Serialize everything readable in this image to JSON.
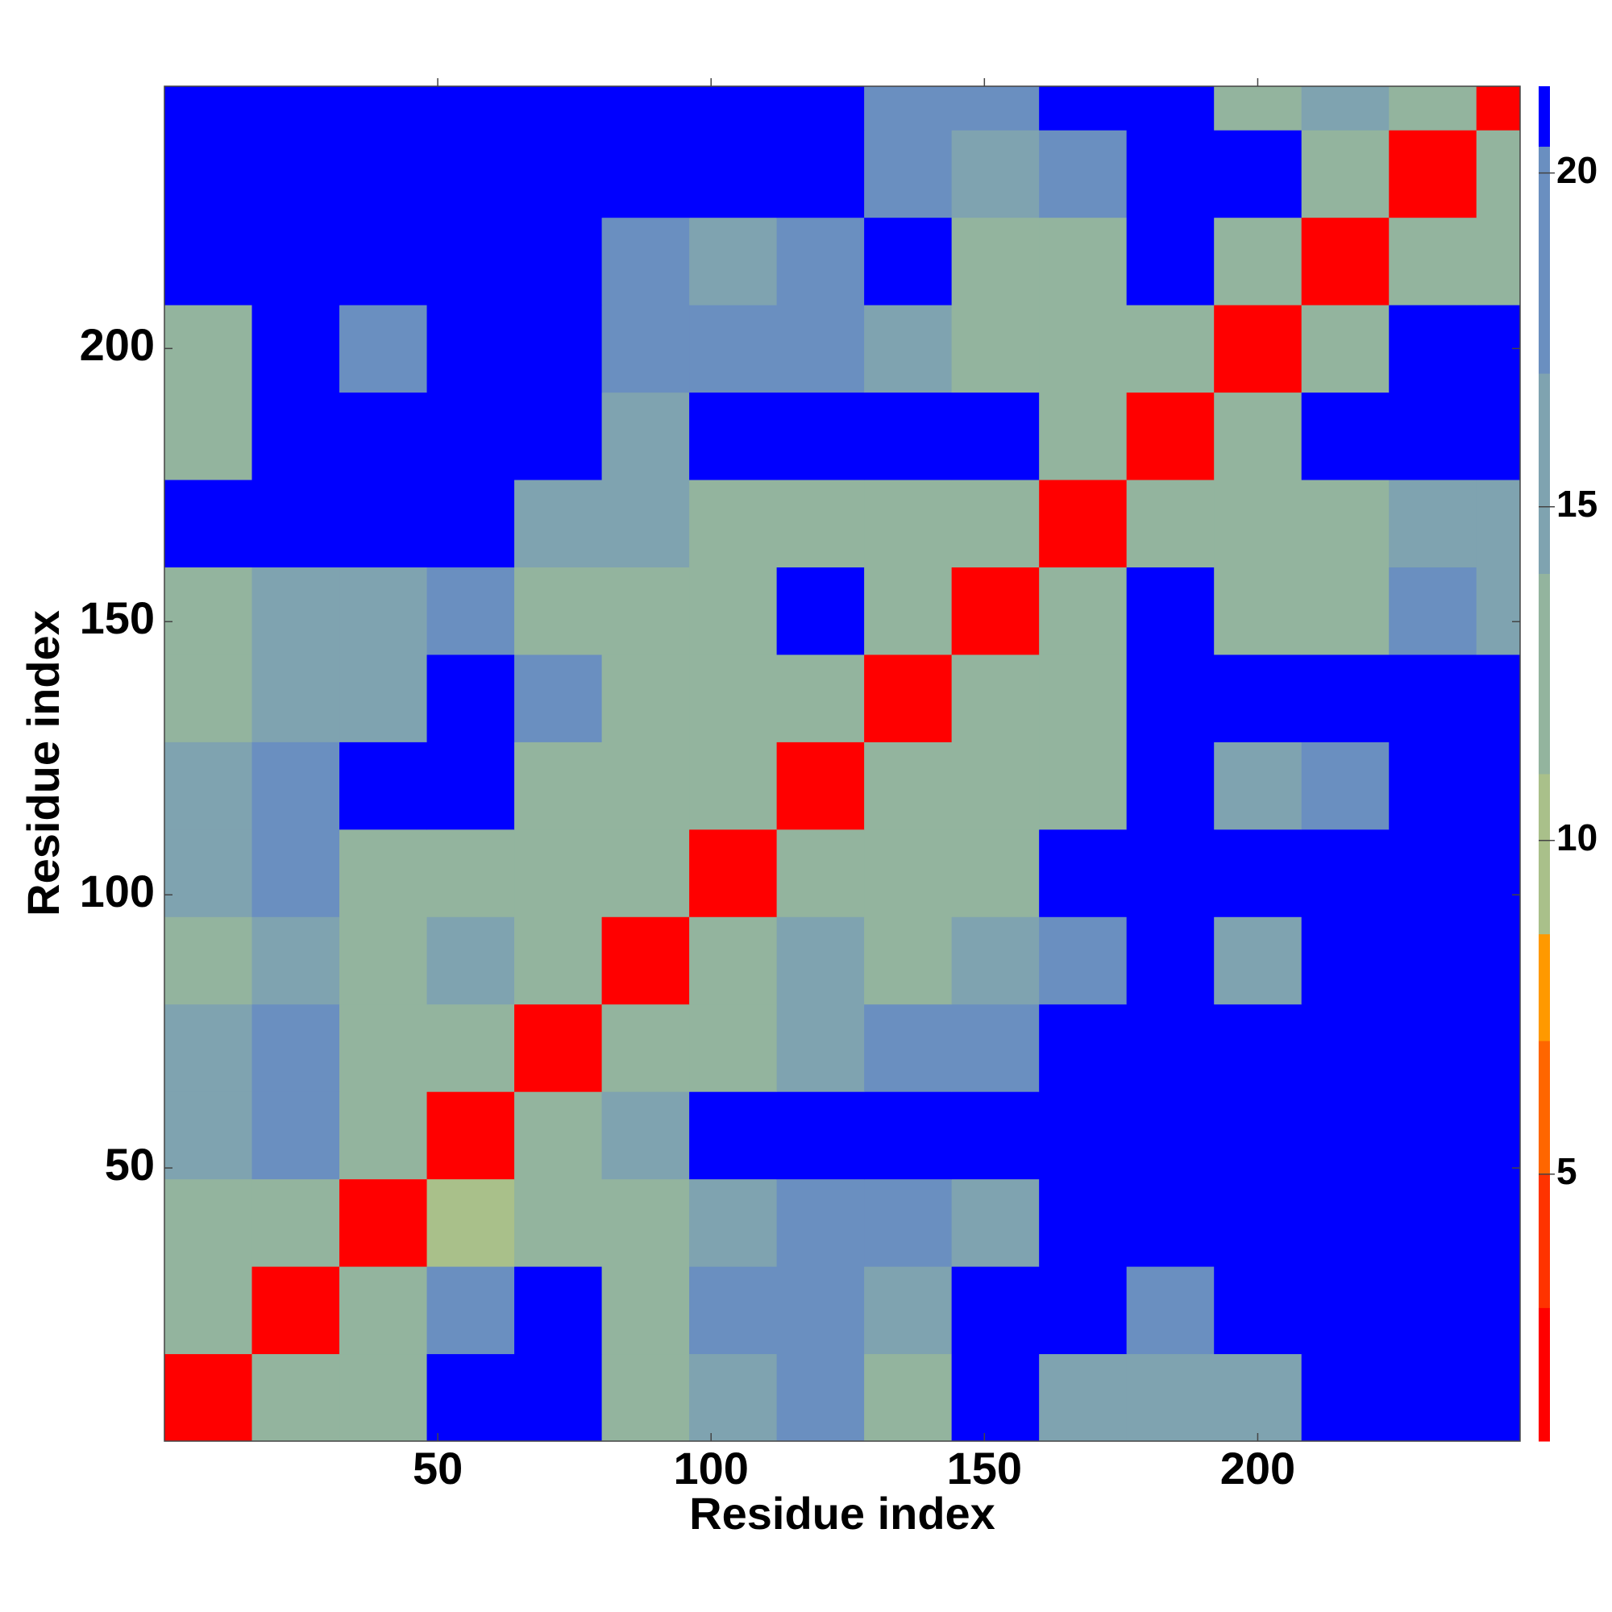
{
  "chart_data": {
    "type": "heatmap",
    "xlabel": "Residue index",
    "ylabel": "Residue index",
    "xbins": [
      0,
      16,
      32,
      48,
      64,
      80,
      96,
      112,
      128,
      144,
      160,
      176,
      192,
      208,
      224,
      240,
      248
    ],
    "ybins": [
      0,
      16,
      32,
      48,
      64,
      80,
      96,
      112,
      128,
      144,
      160,
      176,
      192,
      208,
      224,
      240,
      248
    ],
    "z": [
      [
        2,
        13,
        14,
        21,
        21,
        14,
        17,
        18,
        14,
        21,
        17,
        16,
        15,
        21,
        21,
        21
      ],
      [
        13,
        2,
        12,
        18,
        21,
        14,
        18,
        18,
        15,
        21,
        21,
        20,
        21,
        21,
        21,
        21
      ],
      [
        13,
        12,
        2,
        11,
        13,
        12,
        16,
        19,
        18,
        17,
        21,
        21,
        21,
        21,
        21,
        21
      ],
      [
        16,
        18,
        12,
        2,
        12,
        17,
        21,
        21,
        21,
        21,
        21,
        21,
        21,
        21,
        21,
        21
      ],
      [
        16,
        18,
        12,
        13,
        2,
        13,
        14,
        17,
        19,
        19,
        21,
        21,
        21,
        21,
        21,
        21
      ],
      [
        13,
        17,
        12,
        17,
        12,
        2,
        12,
        15,
        14,
        15,
        18,
        21,
        16,
        21,
        21,
        21
      ],
      [
        17,
        18,
        13,
        14,
        13,
        12,
        2,
        12,
        13,
        14,
        21,
        21,
        21,
        21,
        21,
        21
      ],
      [
        17,
        18,
        21,
        21,
        14,
        12,
        13,
        2,
        13,
        12,
        14,
        21,
        17,
        18,
        21,
        21
      ],
      [
        13,
        17,
        17,
        21,
        18,
        14,
        13,
        12,
        2,
        12,
        13,
        21,
        21,
        21,
        21,
        21
      ],
      [
        13,
        17,
        16,
        18,
        14,
        13,
        14,
        21,
        13,
        2,
        13,
        21,
        14,
        14,
        18,
        17
      ],
      [
        21,
        21,
        21,
        21,
        17,
        16,
        13,
        14,
        13,
        13,
        2,
        12,
        13,
        14,
        17,
        17
      ],
      [
        14,
        21,
        21,
        21,
        21,
        17,
        21,
        21,
        21,
        21,
        12,
        2,
        13,
        21,
        21,
        21
      ],
      [
        14,
        21,
        19,
        21,
        21,
        19,
        18,
        19,
        15,
        14,
        13,
        13,
        2,
        13,
        21,
        21
      ],
      [
        21,
        21,
        21,
        21,
        21,
        18,
        17,
        18,
        21,
        14,
        13,
        21,
        13,
        2,
        13,
        14
      ],
      [
        21,
        21,
        21,
        21,
        21,
        21,
        21,
        21,
        18,
        15,
        18,
        21,
        21,
        13,
        2,
        13
      ],
      [
        21,
        21,
        21,
        21,
        21,
        21,
        21,
        21,
        18,
        19,
        21,
        21,
        14,
        15,
        12,
        2
      ]
    ],
    "xlim": [
      0,
      248
    ],
    "ylim": [
      0,
      248
    ],
    "xticks": [
      50,
      100,
      150,
      200
    ],
    "yticks": [
      50,
      100,
      150,
      200
    ],
    "clim": [
      1,
      21.3
    ],
    "cticks": [
      5,
      10,
      15,
      20
    ],
    "colorscale": [
      {
        "max": 3,
        "color": "#ff0000"
      },
      {
        "max": 5,
        "color": "#ff3300"
      },
      {
        "max": 7,
        "color": "#ff6600"
      },
      {
        "max": 8.6,
        "color": "#ff9900"
      },
      {
        "max": 11,
        "color": "#a9c08a"
      },
      {
        "max": 14,
        "color": "#93b49e"
      },
      {
        "max": 17,
        "color": "#7fa3b0"
      },
      {
        "max": 20.4,
        "color": "#6a8fc0"
      },
      {
        "max": 21.3,
        "color": "#0000ff"
      }
    ]
  }
}
